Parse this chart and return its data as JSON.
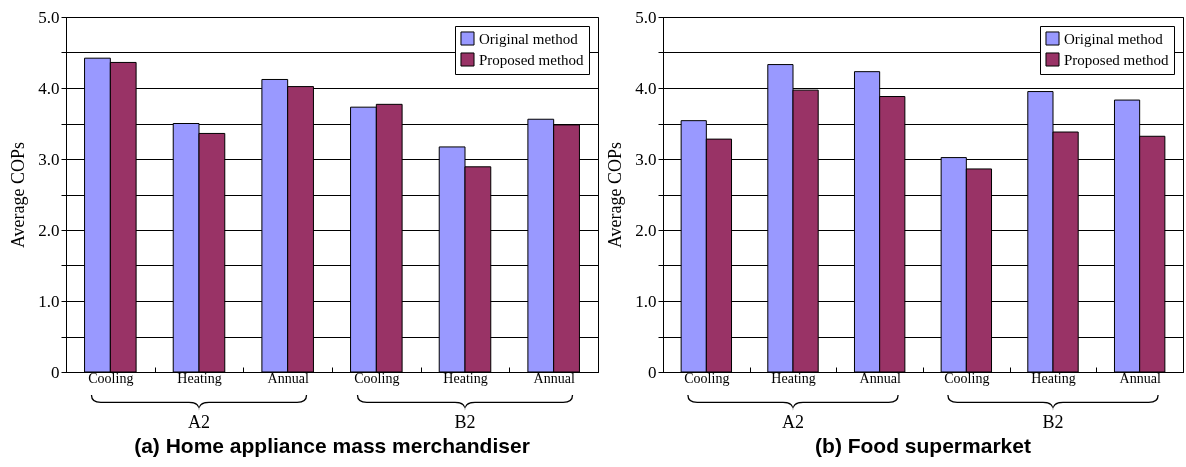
{
  "chart_data": [
    {
      "type": "bar",
      "title": "(a) Home appliance mass merchandiser",
      "ylabel": "Average COPs",
      "categories": [
        "Cooling",
        "Heating",
        "Annual",
        "Cooling",
        "Heating",
        "Annual"
      ],
      "series": [
        {
          "name": "Original method",
          "color": "#9999ff",
          "values": [
            4.42,
            3.5,
            4.12,
            3.73,
            3.17,
            3.56
          ]
        },
        {
          "name": "Proposed method",
          "color": "#993366",
          "values": [
            4.36,
            3.36,
            4.02,
            3.77,
            2.89,
            3.48
          ]
        }
      ],
      "ylim": [
        0,
        5
      ],
      "yticks": [
        0,
        {
          "value": 0.5,
          "label": null
        },
        {
          "value": 1,
          "label": "1.0"
        },
        {
          "value": 1.5,
          "label": null
        },
        {
          "value": 2,
          "label": "2.0"
        },
        {
          "value": 2.5,
          "label": null
        },
        {
          "value": 3,
          "label": "3.0"
        },
        {
          "value": 3.5,
          "label": null
        },
        {
          "value": 4,
          "label": "4.0"
        },
        {
          "value": 4.5,
          "label": null
        },
        {
          "value": 5,
          "label": "5.0"
        }
      ],
      "grid": "y",
      "legend": "top right",
      "annotations": [
        "A2",
        "B2"
      ]
    },
    {
      "type": "bar",
      "title": "(b) Food supermarket",
      "ylabel": "Average COPs",
      "categories": [
        "Cooling",
        "Heating",
        "Annual",
        "Cooling",
        "Heating",
        "Annual"
      ],
      "series": [
        {
          "name": "Original method",
          "color": "#9999ff",
          "values": [
            3.54,
            4.33,
            4.23,
            3.02,
            3.95,
            3.83
          ]
        },
        {
          "name": "Proposed method",
          "color": "#993366",
          "values": [
            3.28,
            3.97,
            3.88,
            2.86,
            3.38,
            3.32
          ]
        }
      ],
      "ylim": [
        0,
        5
      ],
      "yticks": [
        0,
        {
          "value": 0.5,
          "label": null
        },
        {
          "value": 1,
          "label": "1.0"
        },
        {
          "value": 1.5,
          "label": null
        },
        {
          "value": 2,
          "label": "2.0"
        },
        {
          "value": 2.5,
          "label": null
        },
        {
          "value": 3,
          "label": "3.0"
        },
        {
          "value": 3.5,
          "label": null
        },
        {
          "value": 4,
          "label": "4.0"
        },
        {
          "value": 4.5,
          "label": null
        },
        {
          "value": 5,
          "label": "5.0"
        }
      ],
      "grid": "y",
      "legend": "top right",
      "annotations": [
        "A2",
        "B2"
      ]
    }
  ]
}
